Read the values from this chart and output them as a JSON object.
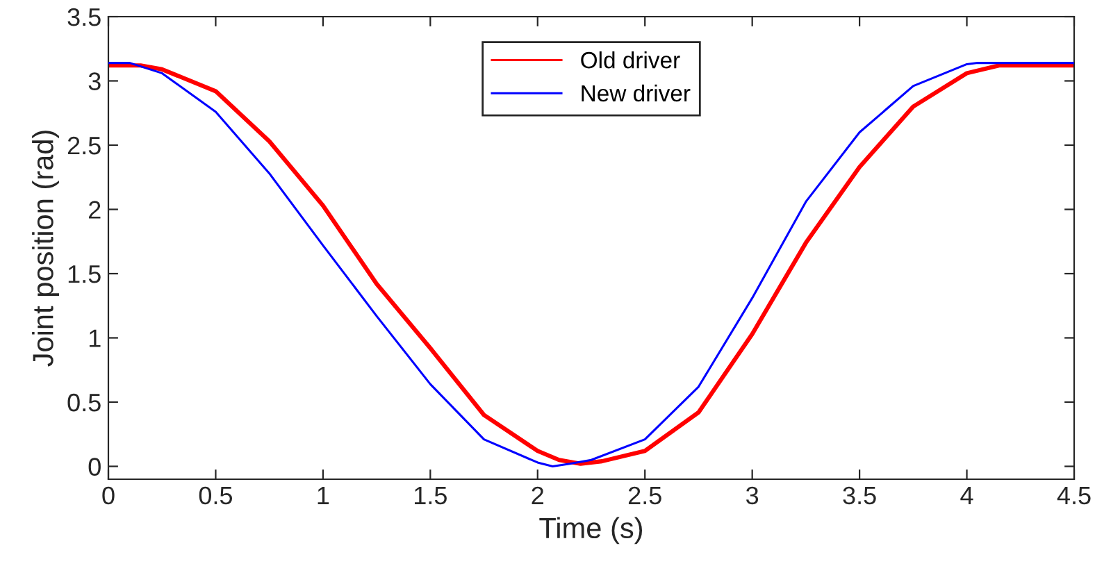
{
  "chart_data": {
    "type": "line",
    "xlabel": "Time (s)",
    "ylabel": "Joint position (rad)",
    "xlim": [
      0,
      4.5
    ],
    "xticks": [
      0,
      0.5,
      1,
      1.5,
      2,
      2.5,
      3,
      3.5,
      4,
      4.5
    ],
    "ylim": [
      -0.1,
      3.5
    ],
    "yticks": [
      0,
      0.5,
      1,
      1.5,
      2,
      2.5,
      3,
      3.5
    ],
    "grid": false,
    "legend": "top",
    "marker": "none",
    "line_style": "solid",
    "series": [
      {
        "name": "Old driver",
        "color": "#ff0000",
        "x": [
          0,
          0.15,
          0.25,
          0.5,
          0.75,
          1,
          1.25,
          1.5,
          1.75,
          2,
          2.1,
          2.2,
          2.3,
          2.5,
          2.75,
          3,
          3.25,
          3.5,
          3.75,
          4,
          4.15,
          4.5
        ],
        "values": [
          3.12,
          3.12,
          3.09,
          2.92,
          2.53,
          2.03,
          1.42,
          0.92,
          0.4,
          0.12,
          0.05,
          0.02,
          0.04,
          0.12,
          0.42,
          1.03,
          1.74,
          2.33,
          2.8,
          3.06,
          3.12,
          3.12
        ]
      },
      {
        "name": "New driver",
        "color": "#0000ff",
        "x": [
          0,
          0.1,
          0.25,
          0.5,
          0.75,
          1,
          1.25,
          1.5,
          1.75,
          2,
          2.07,
          2.15,
          2.25,
          2.5,
          2.75,
          3,
          3.25,
          3.5,
          3.75,
          4,
          4.05,
          4.5
        ],
        "values": [
          3.14,
          3.14,
          3.06,
          2.76,
          2.28,
          1.72,
          1.17,
          0.64,
          0.21,
          0.03,
          0.0,
          0.02,
          0.05,
          0.21,
          0.62,
          1.31,
          2.06,
          2.6,
          2.96,
          3.13,
          3.14,
          3.14
        ]
      }
    ]
  }
}
